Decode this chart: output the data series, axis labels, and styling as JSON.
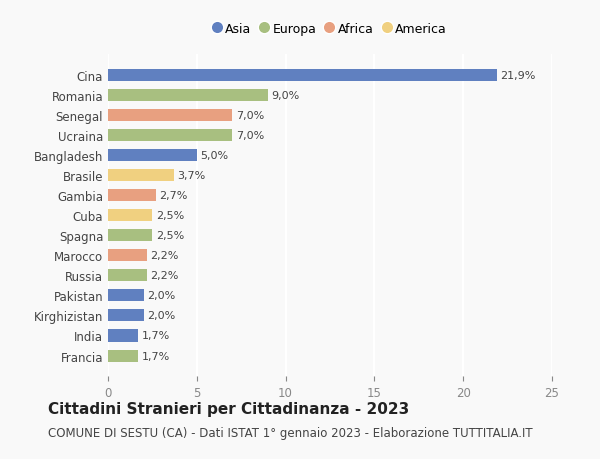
{
  "categories": [
    "Francia",
    "India",
    "Kirghizistan",
    "Pakistan",
    "Russia",
    "Marocco",
    "Spagna",
    "Cuba",
    "Gambia",
    "Brasile",
    "Bangladesh",
    "Ucraina",
    "Senegal",
    "Romania",
    "Cina"
  ],
  "values": [
    1.7,
    1.7,
    2.0,
    2.0,
    2.2,
    2.2,
    2.5,
    2.5,
    2.7,
    3.7,
    5.0,
    7.0,
    7.0,
    9.0,
    21.9
  ],
  "labels": [
    "1,7%",
    "1,7%",
    "2,0%",
    "2,0%",
    "2,2%",
    "2,2%",
    "2,5%",
    "2,5%",
    "2,7%",
    "3,7%",
    "5,0%",
    "7,0%",
    "7,0%",
    "9,0%",
    "21,9%"
  ],
  "continents": [
    "Europa",
    "Asia",
    "Asia",
    "Asia",
    "Europa",
    "Africa",
    "Europa",
    "America",
    "Africa",
    "America",
    "Asia",
    "Europa",
    "Africa",
    "Europa",
    "Asia"
  ],
  "continent_colors": {
    "Asia": "#6080C0",
    "Europa": "#A8BF80",
    "Africa": "#E8A080",
    "America": "#F0D080"
  },
  "legend_order": [
    "Asia",
    "Europa",
    "Africa",
    "America"
  ],
  "title": "Cittadini Stranieri per Cittadinanza - 2023",
  "subtitle": "COMUNE DI SESTU (CA) - Dati ISTAT 1° gennaio 2023 - Elaborazione TUTTITALIA.IT",
  "xlim": [
    0,
    25
  ],
  "xticks": [
    0,
    5,
    10,
    15,
    20,
    25
  ],
  "background_color": "#f9f9f9",
  "grid_color": "#ffffff",
  "bar_height": 0.6,
  "title_fontsize": 11,
  "subtitle_fontsize": 8.5,
  "label_fontsize": 8,
  "tick_fontsize": 8.5,
  "legend_fontsize": 9
}
